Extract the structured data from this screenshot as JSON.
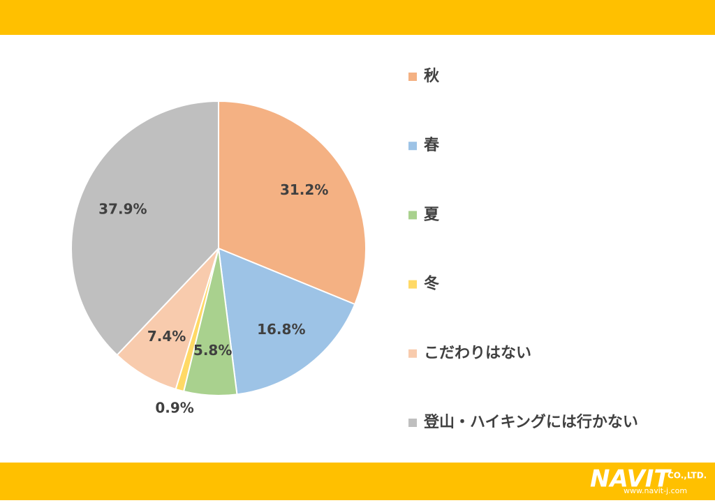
{
  "chart_data": {
    "type": "pie",
    "categories": [
      "秋",
      "春",
      "夏",
      "冬",
      "こだわりはない",
      "登山・ハイキングには行かない"
    ],
    "values": [
      31.2,
      16.8,
      5.8,
      0.9,
      7.4,
      37.9
    ],
    "value_labels": [
      "31.2%",
      "16.8%",
      "5.8%",
      "0.9%",
      "7.4%",
      "37.9%"
    ],
    "colors": [
      "#f4b183",
      "#9dc3e6",
      "#a9d18e",
      "#ffd966",
      "#f8cbad",
      "#bfbfbf"
    ],
    "legend": "right"
  },
  "logo": {
    "name": "NAVIT",
    "company": "CO.,LTD.",
    "url": "www.navit-j.com"
  }
}
